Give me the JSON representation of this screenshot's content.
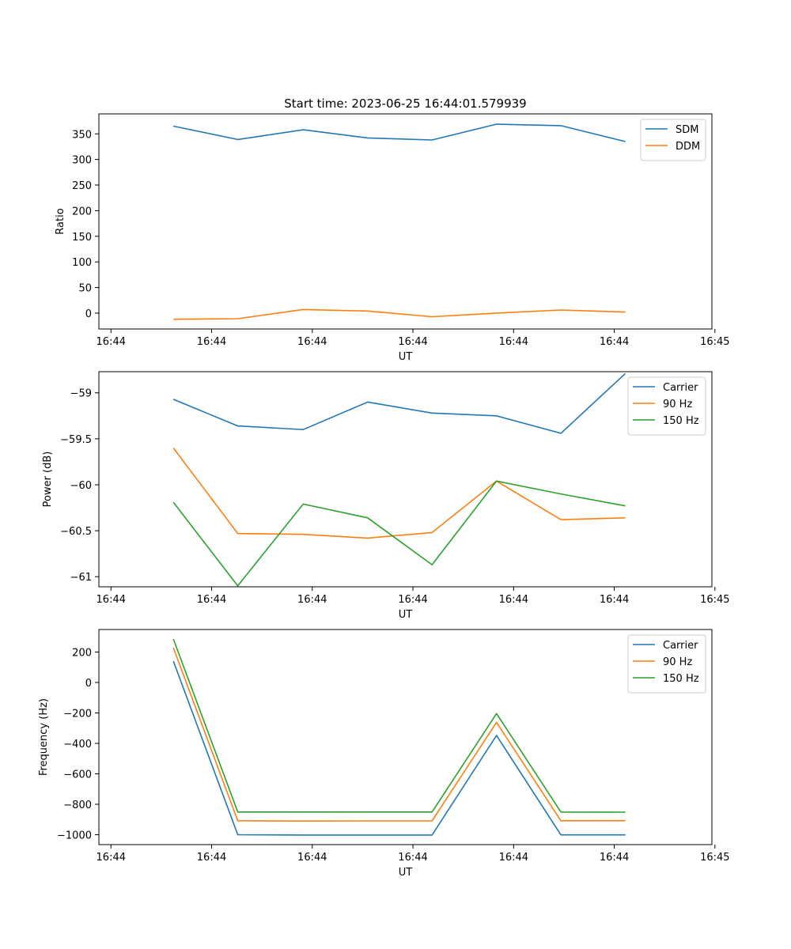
{
  "chart_data": [
    {
      "type": "line",
      "title": "Start time: 2023-06-25 16:44:01.579939",
      "xlabel": "UT",
      "ylabel": "Ratio",
      "x_tick_labels": [
        "16:44",
        "16:44",
        "16:44",
        "16:44",
        "16:44",
        "16:44",
        "16:45"
      ],
      "x_index": [
        0.62,
        1.26,
        1.91,
        2.55,
        3.19,
        3.83,
        4.47,
        5.11
      ],
      "xlim": [
        -0.12,
        5.97
      ],
      "ylim": [
        -31,
        389
      ],
      "yticks": [
        0,
        50,
        100,
        150,
        200,
        250,
        300,
        350
      ],
      "legend": "top-right",
      "series": [
        {
          "name": "SDM",
          "color": "#1f77b4",
          "values": [
            365,
            339,
            358,
            342,
            338,
            369,
            366,
            335
          ]
        },
        {
          "name": "DDM",
          "color": "#ff7f0e",
          "values": [
            -12,
            -11,
            7,
            4,
            -7,
            0,
            6,
            2
          ]
        }
      ]
    },
    {
      "type": "line",
      "title": "",
      "xlabel": "UT",
      "ylabel": "Power (dB)",
      "x_tick_labels": [
        "16:44",
        "16:44",
        "16:44",
        "16:44",
        "16:44",
        "16:44",
        "16:45"
      ],
      "x_index": [
        0.62,
        1.26,
        1.91,
        2.55,
        3.19,
        3.83,
        4.47,
        5.11
      ],
      "xlim": [
        -0.12,
        5.97
      ],
      "ylim": [
        -61.11,
        -58.77
      ],
      "yticks": [
        -61.0,
        -60.5,
        -60.0,
        -59.5,
        -59.0
      ],
      "legend": "top-right",
      "series": [
        {
          "name": "Carrier",
          "color": "#1f77b4",
          "values": [
            -59.07,
            -59.36,
            -59.4,
            -59.1,
            -59.22,
            -59.25,
            -59.44,
            -58.79
          ]
        },
        {
          "name": "90 Hz",
          "color": "#ff7f0e",
          "values": [
            -59.6,
            -60.53,
            -60.54,
            -60.58,
            -60.52,
            -59.96,
            -60.38,
            -60.36
          ]
        },
        {
          "name": "150 Hz",
          "color": "#2ca02c",
          "values": [
            -60.19,
            -61.1,
            -60.21,
            -60.36,
            -60.87,
            -59.96,
            -60.1,
            -60.23
          ]
        }
      ]
    },
    {
      "type": "line",
      "title": "",
      "xlabel": "UT",
      "ylabel": "Frequency (Hz)",
      "x_tick_labels": [
        "16:44",
        "16:44",
        "16:44",
        "16:44",
        "16:44",
        "16:44",
        "16:45"
      ],
      "x_index": [
        0.62,
        1.26,
        1.91,
        2.55,
        3.19,
        3.83,
        4.47,
        5.11
      ],
      "xlim": [
        -0.12,
        5.97
      ],
      "ylim": [
        -1065,
        348
      ],
      "yticks": [
        -1000,
        -800,
        -600,
        -400,
        -200,
        0,
        200
      ],
      "legend": "top-right",
      "series": [
        {
          "name": "Carrier",
          "color": "#1f77b4",
          "values": [
            140,
            -1000,
            -1002,
            -1002,
            -1002,
            -348,
            -1001,
            -1001
          ]
        },
        {
          "name": "90 Hz",
          "color": "#ff7f0e",
          "values": [
            228,
            -908,
            -910,
            -909,
            -909,
            -262,
            -908,
            -908
          ]
        },
        {
          "name": "150 Hz",
          "color": "#2ca02c",
          "values": [
            285,
            -851,
            -851,
            -851,
            -851,
            -204,
            -851,
            -852
          ]
        }
      ]
    }
  ]
}
